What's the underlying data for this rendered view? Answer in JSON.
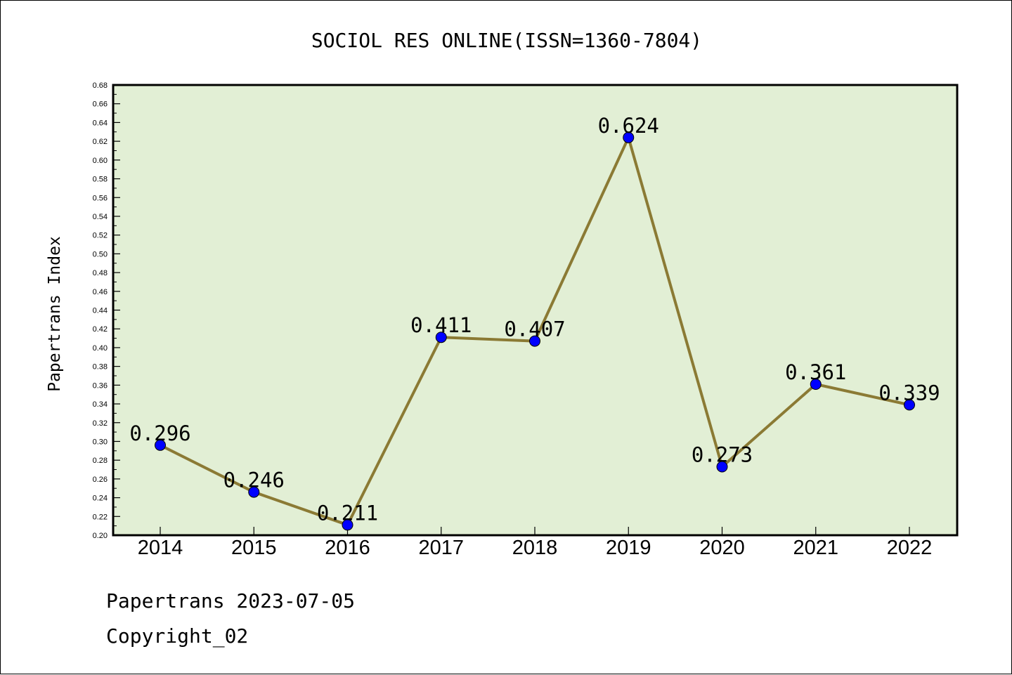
{
  "footer": {
    "line1": "Papertrans 2023-07-05",
    "line2": "Copyright_02"
  },
  "chart_data": {
    "type": "line",
    "title": "SOCIOL RES ONLINE(ISSN=1360-7804)",
    "xlabel": "",
    "ylabel": "Papertrans Index",
    "categories": [
      "2014",
      "2015",
      "2016",
      "2017",
      "2018",
      "2019",
      "2020",
      "2021",
      "2022"
    ],
    "series": [
      {
        "values": [
          0.296,
          0.246,
          0.211,
          0.411,
          0.407,
          0.624,
          0.273,
          0.361,
          0.339
        ]
      }
    ],
    "data_labels": [
      "0.296",
      "0.246",
      "0.211",
      "0.411",
      "0.407",
      "0.624",
      "0.273",
      "0.361",
      "0.339"
    ],
    "ylim": [
      0.2,
      0.68
    ],
    "yticks": [
      "0.20",
      "0.22",
      "0.24",
      "0.26",
      "0.28",
      "0.30",
      "0.32",
      "0.34",
      "0.36",
      "0.38",
      "0.40",
      "0.42",
      "0.44",
      "0.46",
      "0.48",
      "0.50",
      "0.52",
      "0.54",
      "0.56",
      "0.58",
      "0.60",
      "0.62",
      "0.64",
      "0.66",
      "0.68"
    ],
    "grid": false,
    "legend": "none",
    "colors": {
      "plot_background": "#e2efd5",
      "line": "#8b7a34",
      "marker": "#0000ff",
      "marker_edge": "#000000"
    }
  }
}
